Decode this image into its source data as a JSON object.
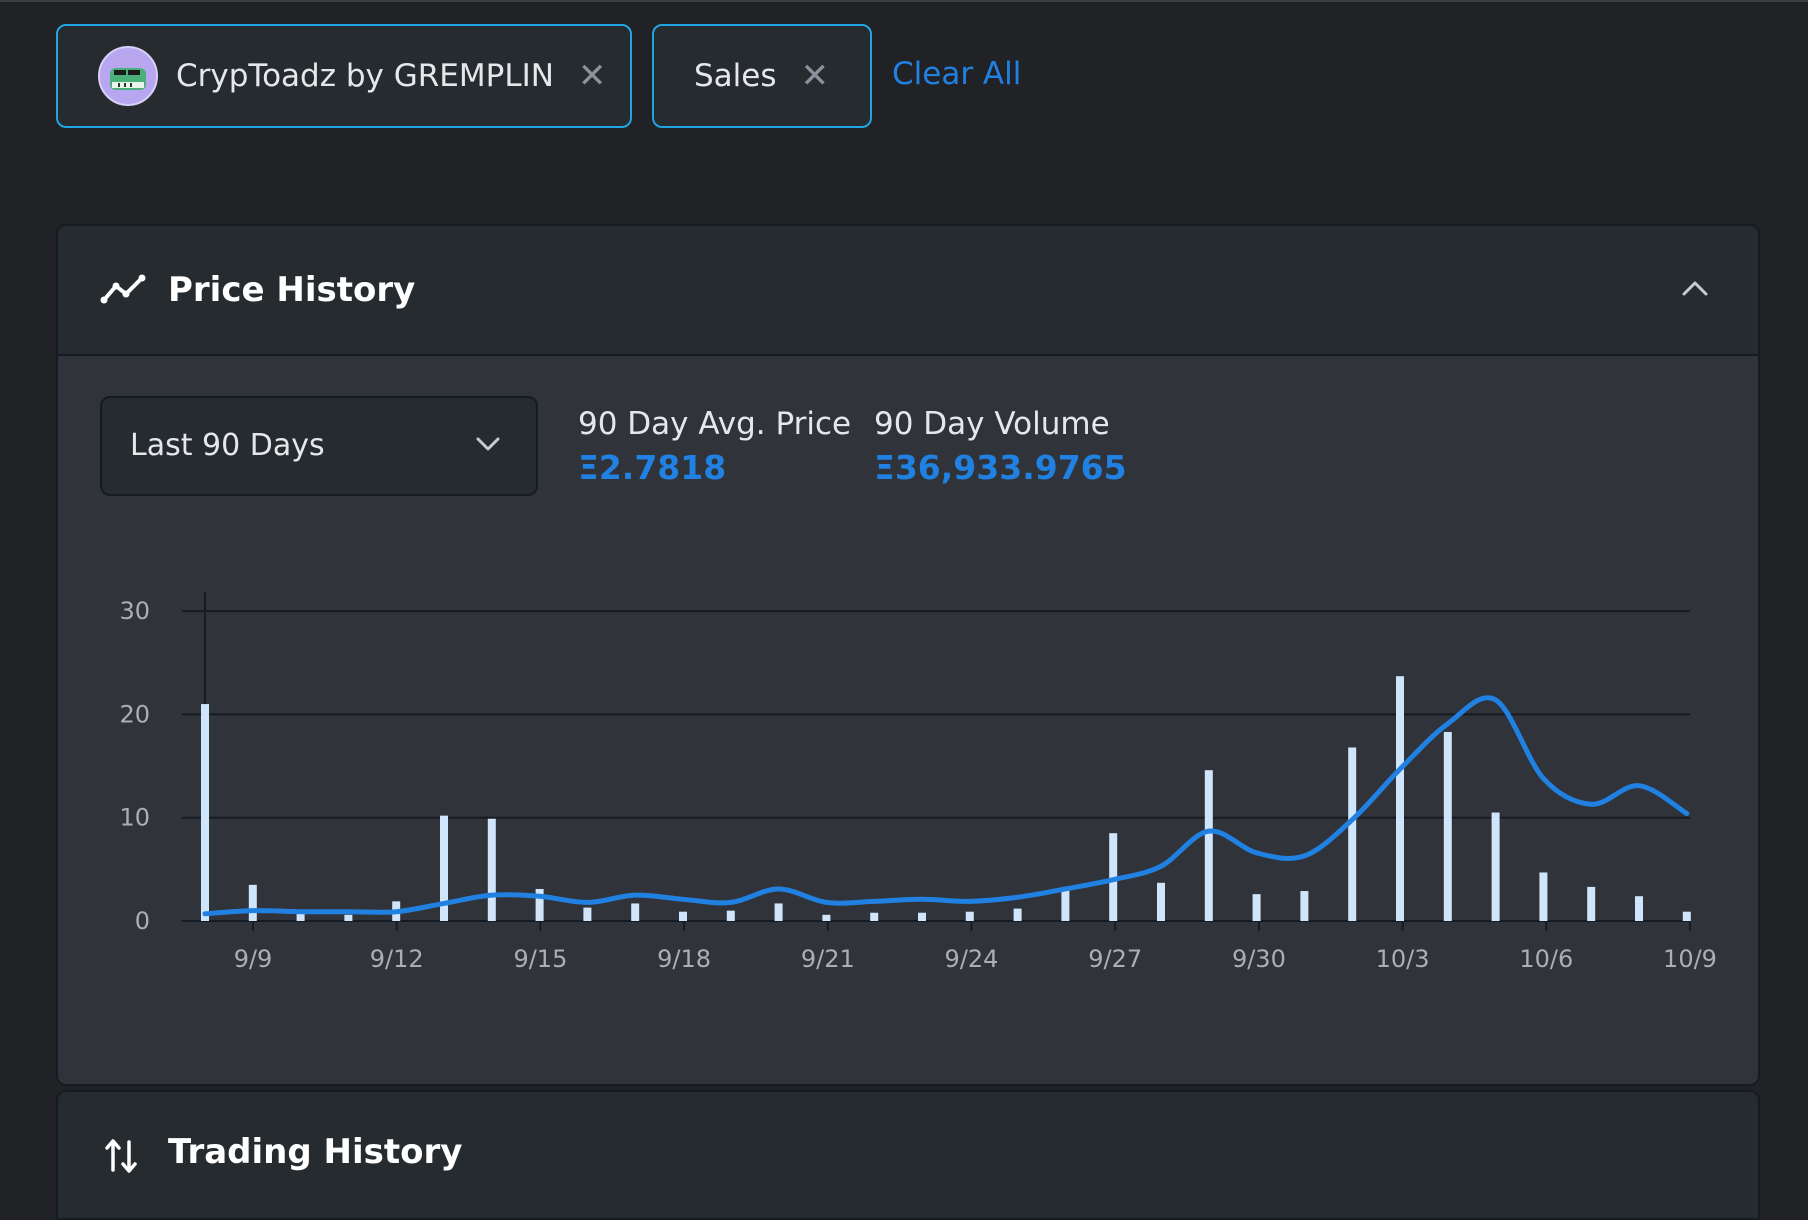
{
  "filters": {
    "collection_chip": {
      "label": "CrypToadz by GREMPLIN"
    },
    "sales_chip": {
      "label": "Sales"
    },
    "clear_all_label": "Clear All"
  },
  "price_history": {
    "title": "Price History",
    "range_select": {
      "selected": "Last 90 Days"
    },
    "stats": {
      "avg_label": "90 Day Avg. Price",
      "avg_value": "Ξ2.7818",
      "volume_label": "90 Day Volume",
      "volume_value": "Ξ36,933.9765"
    }
  },
  "trading_history": {
    "title": "Trading History"
  },
  "colors": {
    "accent": "#2081e2",
    "bar": "#cfe5fb",
    "line": "#2081e2",
    "panel_bg": "#303339",
    "header_bg": "#262b2f"
  },
  "chart_data": {
    "type": "bar",
    "x_ticks": [
      "9/9",
      "9/12",
      "9/15",
      "9/18",
      "9/21",
      "9/24",
      "9/27",
      "9/30",
      "10/3",
      "10/6",
      "10/9"
    ],
    "y_ticks": [
      0,
      10,
      20,
      30
    ],
    "ylim": [
      0,
      30
    ],
    "grid": true,
    "series": [
      {
        "type": "bar",
        "values": [
          21,
          3.5,
          0.7,
          0.6,
          1.9,
          10.2,
          9.9,
          3.1,
          1.3,
          1.7,
          0.9,
          1.0,
          1.7,
          0.6,
          0.8,
          0.8,
          0.9,
          1.2,
          3.3,
          8.5,
          3.7,
          14.6,
          2.6,
          2.9,
          16.8,
          23.7,
          18.3,
          10.5,
          4.7,
          3.3,
          2.4,
          0.9
        ]
      },
      {
        "type": "line",
        "values": [
          0.7,
          1.0,
          0.9,
          0.9,
          0.9,
          1.7,
          2.5,
          2.4,
          1.8,
          2.5,
          2.1,
          1.8,
          3.1,
          1.8,
          1.9,
          2.1,
          1.9,
          2.3,
          3.1,
          4.0,
          5.3,
          8.7,
          6.6,
          6.3,
          9.8,
          14.7,
          19.1,
          21.4,
          13.8,
          11.3,
          13.1,
          10.4
        ]
      }
    ]
  }
}
